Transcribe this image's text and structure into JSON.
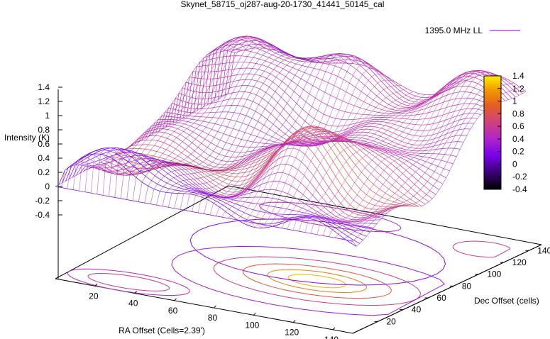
{
  "chart_data": {
    "type": "surface3d",
    "title": "Skynet_58715_oj287-aug-20-1730_41441_50145_cal",
    "legend": {
      "label": "1395.0 MHz LL",
      "color": "#9a32cd",
      "position": "top-right"
    },
    "xlabel": "RA Offset (Cells=2.39')",
    "ylabel": "Dec Offset (cells)",
    "zlabel": "Intensity (K)",
    "xlim": [
      0,
      150
    ],
    "ylim": [
      0,
      150
    ],
    "zlim": [
      -0.4,
      1.4
    ],
    "x_ticks": [
      "20",
      "40",
      "60",
      "80",
      "100",
      "120",
      "140"
    ],
    "y_ticks": [
      "20",
      "40",
      "60",
      "80",
      "100",
      "120",
      "140"
    ],
    "z_ticks": [
      "-0.4",
      "-0.2",
      "0",
      "0.2",
      "0.4",
      "0.6",
      "0.8",
      "1",
      "1.2",
      "1.4"
    ],
    "colorbar": {
      "range": [
        -0.4,
        1.4
      ],
      "ticks": [
        "1.4",
        "1.2",
        "1",
        "0.8",
        "0.6",
        "0.4",
        "0.2",
        "0",
        "-0.2",
        "-0.4"
      ],
      "palette": [
        "#000000",
        "#3a0077",
        "#7a00e8",
        "#b227c8",
        "#d2427a",
        "#e4631f",
        "#f29c00",
        "#fff000"
      ]
    },
    "peak": {
      "x": 100,
      "y": 55,
      "z": 1.25
    },
    "contour_surface": "projected on base plane",
    "grid": false
  }
}
